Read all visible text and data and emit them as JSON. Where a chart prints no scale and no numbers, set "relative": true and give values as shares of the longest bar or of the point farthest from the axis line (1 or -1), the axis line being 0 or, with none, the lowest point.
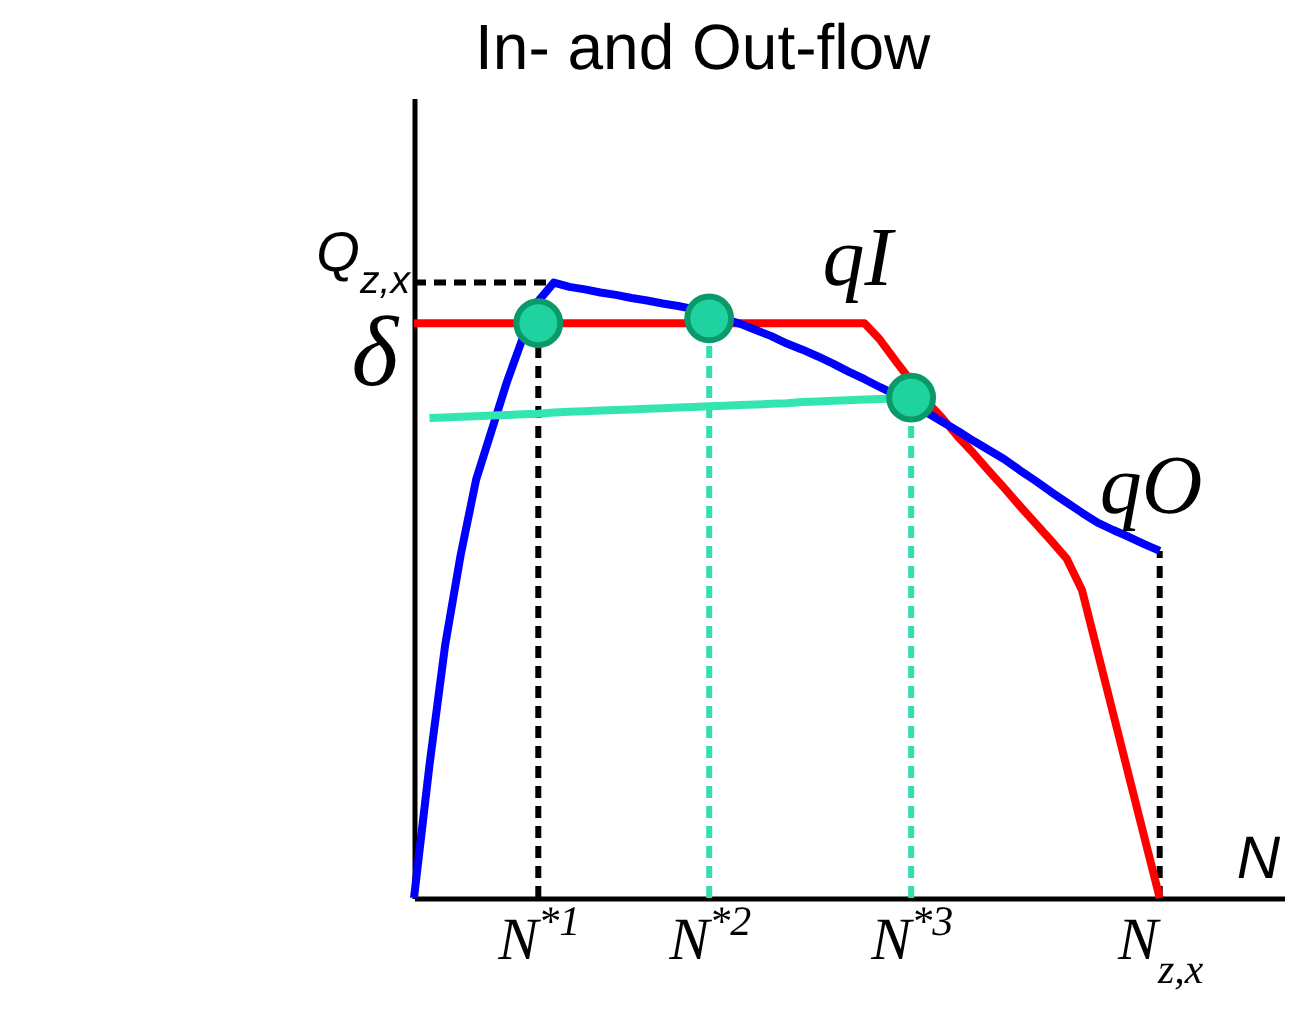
{
  "chart_data": {
    "type": "line",
    "relative": true,
    "ylabel": "In- and Out-flow",
    "xlabel": "N",
    "categories": [
      null,
      null,
      null,
      null,
      null,
      null,
      null,
      null,
      "N$^{*1}$",
      null,
      null,
      null,
      null,
      null,
      null,
      null,
      null,
      null,
      null,
      "N$^{*2}$",
      null,
      null,
      null,
      null,
      null,
      null,
      null,
      null,
      null,
      null,
      null,
      null,
      "N$^{*3}$",
      null,
      null,
      null,
      null,
      null,
      null,
      null,
      null,
      null,
      null,
      null,
      null,
      null,
      null,
      null,
      "N$_{z,x}$",
      null,
      null,
      null,
      null,
      null,
      null,
      null,
      null
    ],
    "grid": false,
    "legend": false,
    "series": [
      {
        "name": "qI",
        "color": "#ff0000",
        "values": [
          0.934,
          0.934,
          0.934,
          0.934,
          0.934,
          0.934,
          0.934,
          null,
          null,
          null,
          0.934,
          0.934,
          0.934,
          0.934,
          0.934,
          0.934,
          0.934,
          0.934,
          null,
          null,
          null,
          0.934,
          0.934,
          0.934,
          0.934,
          0.934,
          0.934,
          0.934,
          0.934,
          0.934,
          0.907,
          0.873,
          0.84,
          0.807,
          0.78,
          0.75,
          0.723,
          0.694,
          0.666,
          0.637,
          0.609,
          0.581,
          0.552,
          0.5,
          0.4,
          0.3,
          0.2,
          0.1,
          0,
          null,
          null,
          null,
          null,
          null,
          null,
          null,
          null
        ]
      },
      {
        "name": "qO",
        "color": "#0000ff",
        "values": [
          0,
          0.217,
          0.41,
          0.557,
          0.68,
          0.76,
          0.84,
          0.91,
          0.97,
          1,
          0.993,
          0.989,
          0.984,
          0.98,
          0.975,
          0.971,
          0.966,
          0.962,
          0.957,
          null,
          null,
          0.933,
          0.923,
          0.913,
          0.901,
          0.891,
          0.88,
          0.868,
          0.855,
          0.843,
          0.83,
          0.818,
          null,
          0.789,
          0.774,
          0.759,
          0.743,
          0.728,
          0.713,
          0.695,
          0.678,
          0.66,
          0.643,
          0.626,
          0.61,
          0.598,
          0.587,
          0.575,
          0.564,
          null,
          null,
          null,
          null,
          null,
          null,
          null,
          null
        ]
      },
      {
        "color": "#33e6b0",
        "values": [
          null,
          0.78,
          0.781,
          0.782,
          0.783,
          0.784,
          0.785,
          0.786,
          0.787,
          0.789,
          0.79,
          0.791,
          0.792,
          0.793,
          0.794,
          0.795,
          0.796,
          0.797,
          0.798,
          0.799,
          0.8,
          0.801,
          0.802,
          0.803,
          0.804,
          0.806,
          0.807,
          0.808,
          0.809,
          0.81,
          0.811,
          0.812,
          0.813,
          null,
          null,
          null,
          null,
          null,
          null,
          null,
          null,
          null,
          null,
          null,
          null,
          null,
          null,
          null,
          null,
          null,
          null,
          null,
          null,
          null,
          null,
          null,
          null
        ]
      },
      {
        "type": "scatter",
        "color": "#1fd3a0",
        "marker": "circle",
        "values": [
          null,
          null,
          null,
          null,
          null,
          null,
          null,
          null,
          0.934,
          null,
          null,
          null,
          null,
          null,
          null,
          null,
          null,
          null,
          null,
          0.942,
          null,
          null,
          null,
          null,
          null,
          null,
          null,
          null,
          null,
          null,
          null,
          null,
          0.813,
          null,
          null,
          null,
          null,
          null,
          null,
          null,
          null,
          null,
          null,
          null,
          null,
          null,
          null,
          null,
          null,
          null,
          null,
          null,
          null,
          null,
          null,
          null,
          null
        ]
      }
    ],
    "ref_lines": [
      {
        "axis": "y",
        "value": 1,
        "label": "Q$_{z,x}$",
        "color": "#000000",
        "line_style": "dashed"
      },
      {
        "axis": "x",
        "value": "N$^{*1}$",
        "color": "#000000",
        "line_style": "dashed"
      },
      {
        "axis": "x",
        "value": "N$^{*2}$",
        "color": "#33ddb0",
        "line_style": "dashed"
      },
      {
        "axis": "x",
        "value": "N$^{*3}$",
        "color": "#33ddb0",
        "line_style": "dashed"
      },
      {
        "axis": "x",
        "value": "N$_{z,x}$",
        "color": "#000000",
        "line_style": "dashed"
      }
    ],
    "annotations": [
      "δ"
    ]
  }
}
